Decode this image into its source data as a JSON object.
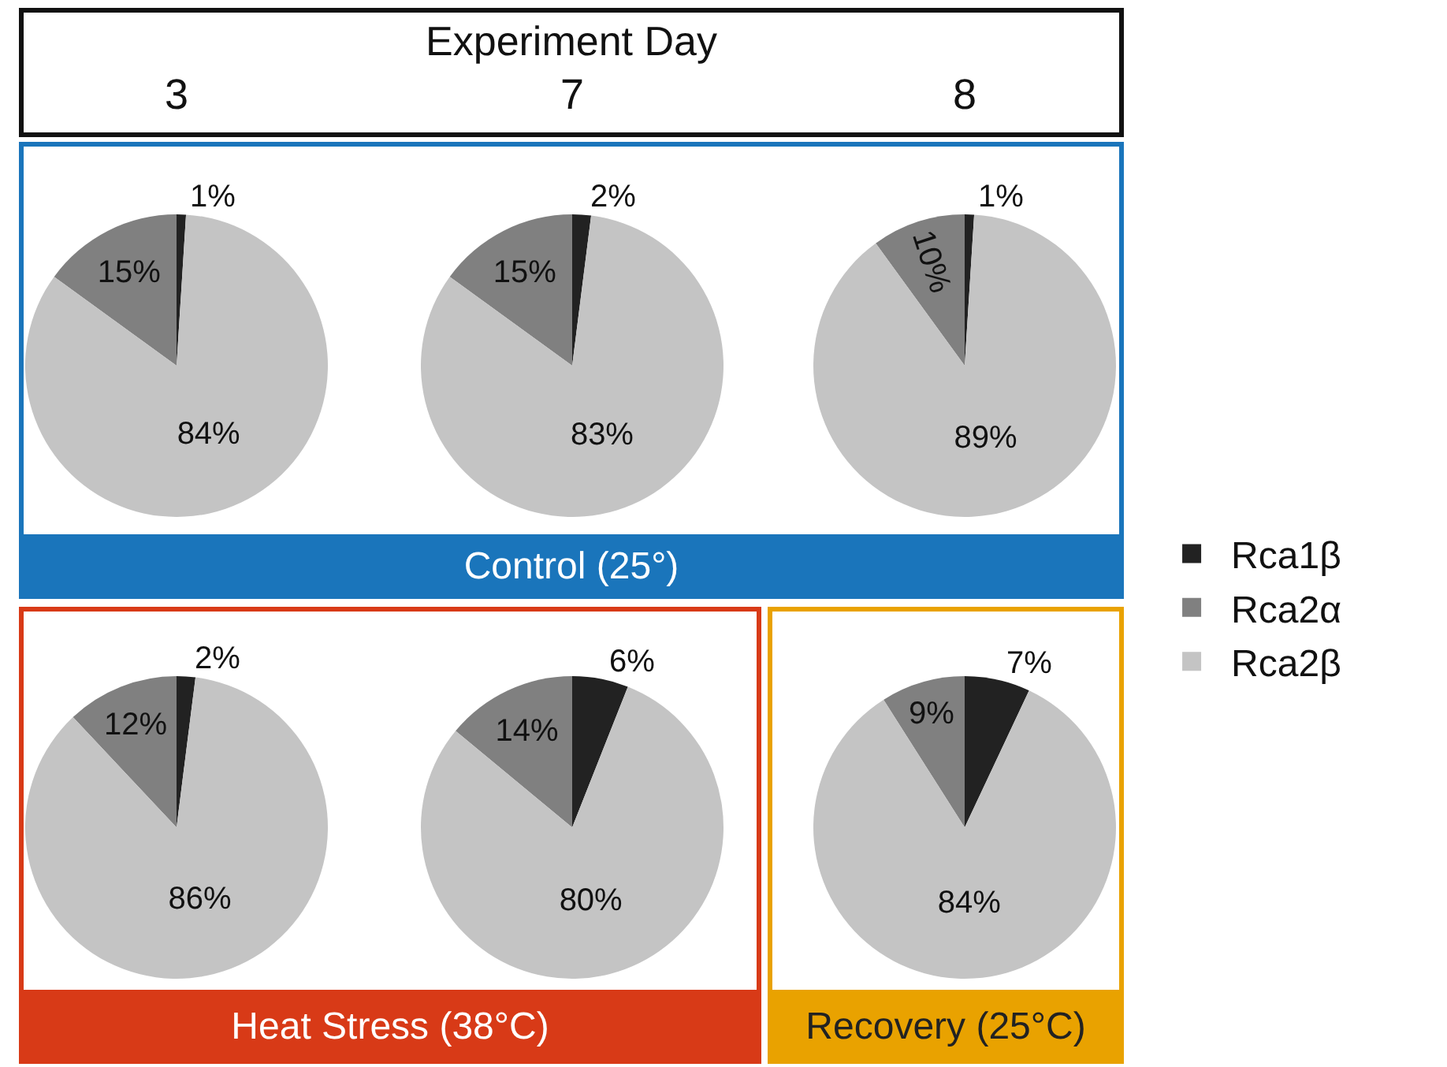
{
  "chart_data": [
    {
      "type": "other",
      "title": "Experiment Day",
      "annotations": [
        "3",
        "7",
        "8"
      ]
    },
    {
      "type": "pie",
      "categories": [
        null,
        null,
        null
      ],
      "values": [
        1,
        15,
        84
      ],
      "colors": [
        "#222222",
        "#808080",
        "#c4c4c4"
      ],
      "value_labels": [
        "1%",
        "15%",
        "84%"
      ]
    },
    {
      "type": "pie",
      "categories": [
        null,
        null,
        null
      ],
      "values": [
        2,
        15,
        83
      ],
      "colors": [
        "#222222",
        "#808080",
        "#c4c4c4"
      ],
      "value_labels": [
        "2%",
        "15%",
        "83%"
      ]
    },
    {
      "type": "pie",
      "categories": [
        "Rca1β",
        "Rca2α",
        "Rca2β"
      ],
      "values": [
        1,
        10,
        89
      ],
      "colors": [
        "#222222",
        "#808080",
        "#c4c4c4"
      ],
      "value_labels": [
        "1%",
        "10%",
        "89%"
      ],
      "legend": "right"
    },
    {
      "type": "other",
      "title": "Control (25°)",
      "color": "#1a75bb"
    },
    {
      "type": "pie",
      "categories": [
        null,
        null,
        null
      ],
      "values": [
        2,
        12,
        86
      ],
      "colors": [
        "#222222",
        "#808080",
        "#c4c4c4"
      ],
      "value_labels": [
        "2%",
        "12%",
        "86%"
      ]
    },
    {
      "type": "pie",
      "categories": [
        null,
        null,
        null
      ],
      "values": [
        6,
        14,
        80
      ],
      "colors": [
        "#222222",
        "#808080",
        "#c4c4c4"
      ],
      "value_labels": [
        "6%",
        "14%",
        "80%"
      ]
    },
    {
      "type": "other",
      "title": "Heat Stress (38°C)",
      "color": "#d83a17"
    },
    {
      "type": "pie",
      "categories": [
        null,
        null,
        null
      ],
      "values": [
        7,
        9,
        84
      ],
      "colors": [
        "#222222",
        "#808080",
        "#c4c4c4"
      ],
      "value_labels": [
        "7%",
        "9%",
        "84%"
      ]
    },
    {
      "type": "other",
      "title": "Recovery (25°C)",
      "color": "#e9a200"
    }
  ]
}
